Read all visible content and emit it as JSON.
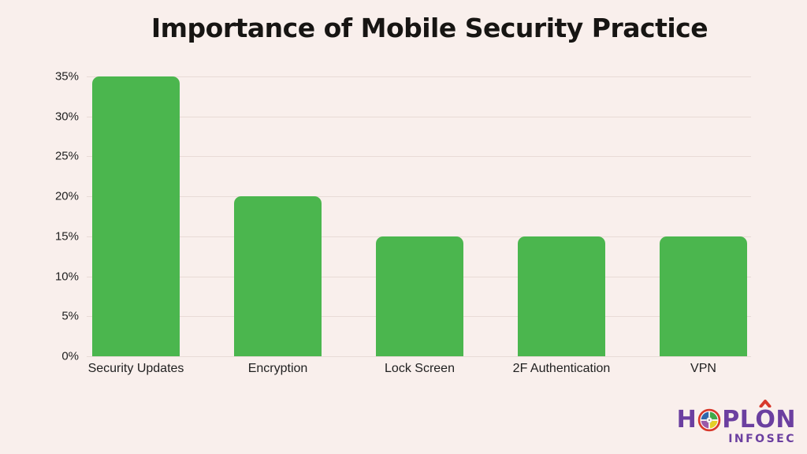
{
  "title": "Importance of Mobile Security Practice",
  "chart_data": {
    "type": "bar",
    "title": "Importance of Mobile Security Practice",
    "categories": [
      "Security Updates",
      "Encryption",
      "Lock Screen",
      "2F Authentication",
      "VPN"
    ],
    "values": [
      35,
      20,
      15,
      15,
      15
    ],
    "value_unit": "%",
    "xlabel": "",
    "ylabel": "",
    "ylim": [
      0,
      35
    ],
    "yticks": [
      0,
      5,
      10,
      15,
      20,
      25,
      30,
      35
    ],
    "ytick_suffix": "%",
    "grid": true,
    "legend": false,
    "bar_color": "#4bb64e",
    "background_color": "#f9efec",
    "gridline_color": "#e8dbd6",
    "text_color": "#1f1f1f"
  },
  "logo": {
    "part_h": "H",
    "part_pl": "PL",
    "part_o": "O",
    "part_n": "N",
    "subtitle": "INFOSEC",
    "icon_name": "hoplon-shutter-globe-icon",
    "purple": "#6b3fa0",
    "red": "#d8392c"
  }
}
